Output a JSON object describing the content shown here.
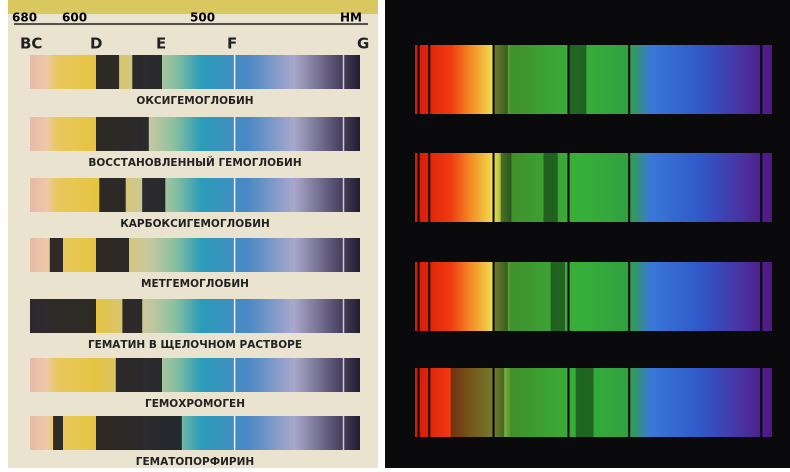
{
  "scale": {
    "ticks": [
      "680",
      "600",
      "500"
    ],
    "unit": "НМ"
  },
  "lines": [
    "BC",
    "D",
    "E",
    "F",
    "G"
  ],
  "spectra": [
    "ОКСИГЕМОГЛОБИН",
    "ВОССТАНОВЛЕННЫЙ ГЕМОГЛОБИН",
    "КАРБОКСИГЕМОГЛОБИН",
    "МЕТГЕМОГЛОБИН",
    "ГЕМАТИН В ЩЕЛОЧНОМ РАСТВОРЕ",
    "ГЕМОХРОМОГЕН",
    "ГЕМАТОПОРФИРИН"
  ]
}
